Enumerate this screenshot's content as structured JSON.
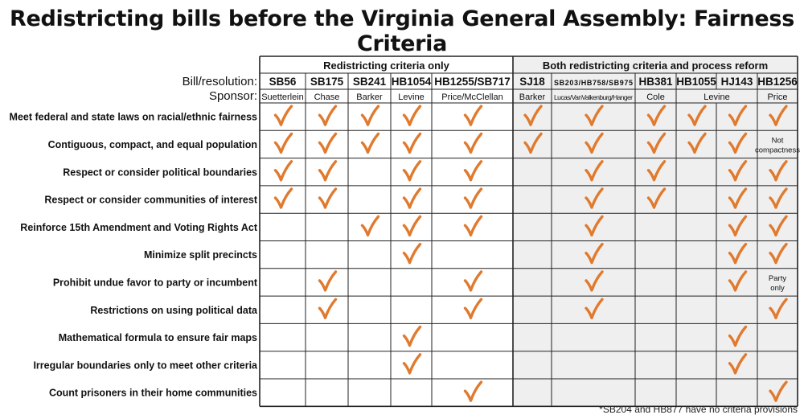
{
  "title": "Redistricting bills before the Virginia General Assembly: Fairness Criteria",
  "footnote": "*SB204 and HB877 have no criteria provisions",
  "colors": {
    "check": "#e07a2e",
    "shade": "#f0efef",
    "line": "#222222"
  },
  "chart_data": {
    "type": "table",
    "row_header_labels": {
      "bill": "Bill/resolution:",
      "sponsor": "Sponsor:"
    },
    "groups": [
      {
        "label": "Redistricting criteria only",
        "bills": [
          "SB56",
          "SB175",
          "SB241",
          "HB1054",
          "HB1255/SB717"
        ]
      },
      {
        "label": "Both redistricting criteria and process reform",
        "bills": [
          "SJ18",
          "SB203/HB758/SB975",
          "HB381",
          "HB1055",
          "HJ143",
          "HB1256"
        ]
      }
    ],
    "bills": [
      "SB56",
      "SB175",
      "SB241",
      "HB1054",
      "HB1255/SB717",
      "SJ18",
      "SB203/HB758/SB975",
      "HB381",
      "HB1055",
      "HJ143",
      "HB1256"
    ],
    "sponsors": [
      {
        "label": "Suetterlein",
        "span": 1
      },
      {
        "label": "Chase",
        "span": 1
      },
      {
        "label": "Barker",
        "span": 1
      },
      {
        "label": "Levine",
        "span": 1
      },
      {
        "label": "Price/McClellan",
        "span": 1
      },
      {
        "label": "Barker",
        "span": 1
      },
      {
        "label": "Lucas/VanValkenburg/Hanger",
        "span": 1
      },
      {
        "label": "Cole",
        "span": 1
      },
      {
        "label": "Levine",
        "span": 2
      },
      {
        "label": "Price",
        "span": 1
      }
    ],
    "criteria": [
      {
        "label": "Meet federal and state laws on racial/ethnic fairness",
        "values": [
          1,
          1,
          1,
          1,
          1,
          1,
          1,
          1,
          1,
          1,
          1
        ]
      },
      {
        "label": "Contiguous, compact, and equal population",
        "values": [
          1,
          1,
          1,
          1,
          1,
          1,
          1,
          1,
          1,
          1,
          "Not compactness"
        ]
      },
      {
        "label": "Respect or consider political boundaries",
        "values": [
          1,
          1,
          0,
          1,
          1,
          0,
          1,
          1,
          0,
          1,
          1
        ]
      },
      {
        "label": "Respect or consider communities of interest",
        "values": [
          1,
          1,
          0,
          1,
          1,
          0,
          1,
          1,
          0,
          1,
          1
        ]
      },
      {
        "label": "Reinforce 15th Amendment and Voting Rights Act",
        "values": [
          0,
          0,
          1,
          1,
          1,
          0,
          1,
          0,
          0,
          1,
          1
        ]
      },
      {
        "label": "Minimize split precincts",
        "values": [
          0,
          0,
          0,
          1,
          0,
          0,
          1,
          0,
          0,
          1,
          1
        ]
      },
      {
        "label": "Prohibit undue favor to party or incumbent",
        "values": [
          0,
          1,
          0,
          0,
          1,
          0,
          1,
          0,
          0,
          1,
          "Party only"
        ]
      },
      {
        "label": "Restrictions on using political data",
        "values": [
          0,
          1,
          0,
          0,
          1,
          0,
          1,
          0,
          0,
          0,
          1
        ]
      },
      {
        "label": "Mathematical formula to ensure fair maps",
        "values": [
          0,
          0,
          0,
          1,
          0,
          0,
          0,
          0,
          0,
          1,
          0
        ]
      },
      {
        "label": "Irregular boundaries only to meet other criteria",
        "values": [
          0,
          0,
          0,
          1,
          0,
          0,
          0,
          0,
          0,
          1,
          0
        ]
      },
      {
        "label": "Count prisoners in their home communities",
        "values": [
          0,
          0,
          0,
          0,
          1,
          0,
          0,
          0,
          0,
          0,
          1
        ]
      }
    ]
  }
}
